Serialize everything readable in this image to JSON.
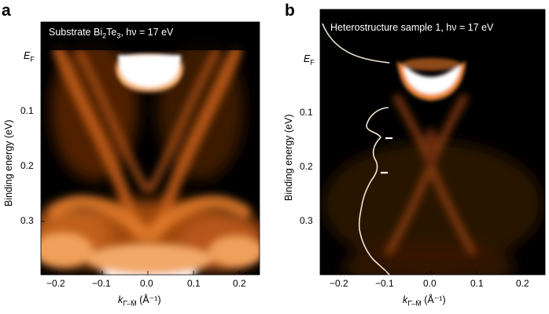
{
  "figure": {
    "panels": [
      {
        "letter": "a",
        "inset_title_prefix": "Substrate Bi",
        "inset_title_sub1": "2",
        "inset_title_mid": "Te",
        "inset_title_sub2": "3",
        "inset_title_suffix": ", hν = 17 eV",
        "ylabel": "Binding energy (eV)",
        "ef_main": "E",
        "ef_sub": "F",
        "y_ticks": [
          "0.1",
          "0.2",
          "0.3"
        ],
        "x_ticks": [
          "−0.2",
          "−0.1",
          "0.0",
          "0.1",
          "0.2"
        ],
        "xlabel_k": "k",
        "xlabel_sub": "Γ̄–M̄",
        "xlabel_unit": "(Å⁻¹)"
      },
      {
        "letter": "b",
        "inset_title": "Heterostructure sample 1, hν = 17 eV",
        "ylabel": "Binding energy (eV)",
        "ef_main": "E",
        "ef_sub": "F",
        "y_ticks": [
          "0.1",
          "0.2",
          "0.3"
        ],
        "x_ticks": [
          "−0.2",
          "−0.1",
          "0.0",
          "0.1",
          "0.2"
        ],
        "xlabel_k": "k",
        "xlabel_sub": "Γ̄–M̄",
        "xlabel_unit": "(Å⁻¹)"
      }
    ],
    "colors": {
      "map_dark": "#000000",
      "map_mid": "#b8520e",
      "map_bright": "#f6a05a",
      "map_peak": "#ffffff",
      "edc_curve": "#f1e6d0"
    }
  }
}
